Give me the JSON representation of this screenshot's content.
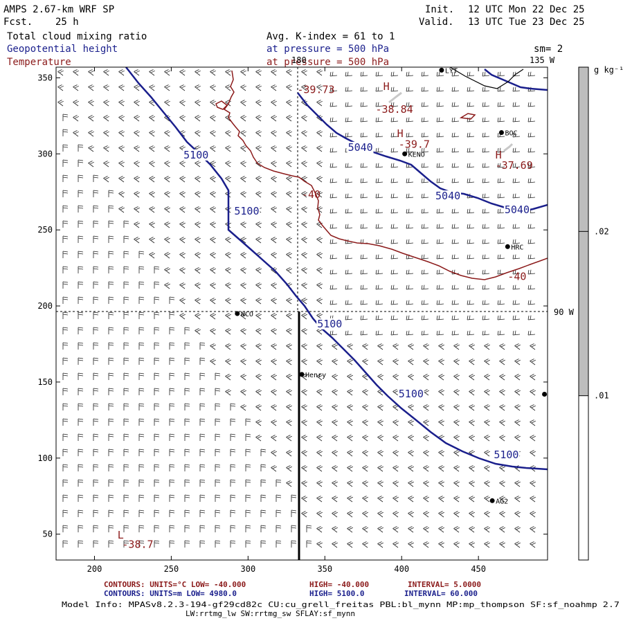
{
  "header": {
    "model": "AMPS 2.67-km WRF SP",
    "fcst_label": "Fcst.",
    "fcst_value": "25 h",
    "init_label": "Init.",
    "init_value": "12 UTC Mon 22 Dec 25",
    "valid_label": "Valid.",
    "valid_value": "13 UTC Tue 23 Dec 25",
    "field1": "Total cloud mixing ratio",
    "field1_extra": "Avg. K-index =  61 to   1",
    "field2": "Geopotential height",
    "field2_extra": "at pressure =  500 hPa",
    "field3": "Temperature",
    "field3_extra": "at pressure =  500 hPa",
    "smoothing": "sm= 2"
  },
  "colors": {
    "height_contour": "#1a1f8c",
    "temperature_contour": "#8b1a1a",
    "field1_text": "#000000",
    "field2_text": "#1a1f8c",
    "field3_text": "#8b1a1a",
    "colorbar_fill": "#bdbdbd"
  },
  "axes": {
    "x_ticks": [
      "200",
      "250",
      "300",
      "350",
      "400",
      "450"
    ],
    "x_values": [
      200,
      250,
      300,
      350,
      400,
      450
    ],
    "y_ticks": [
      "50",
      "100",
      "150",
      "200",
      "250",
      "300",
      "350"
    ],
    "y_values": [
      50,
      100,
      150,
      200,
      250,
      300,
      350
    ],
    "x_range": [
      175,
      495
    ],
    "y_range": [
      33,
      357
    ]
  },
  "map": {
    "meridian_labels": [
      "135 W",
      "180",
      "90 W"
    ],
    "sites": [
      {
        "name": "NCO",
        "x": 293,
        "y": 195
      },
      {
        "name": "Henry",
        "x": 335,
        "y": 155
      },
      {
        "name": "KENO",
        "x": 402,
        "y": 300
      },
      {
        "name": "BOC",
        "x": 465,
        "y": 314
      },
      {
        "name": "HRC",
        "x": 469,
        "y": 239
      },
      {
        "name": "AG2",
        "x": 459,
        "y": 72
      },
      {
        "name": "LYT",
        "x": 426,
        "y": 355
      },
      {
        "name": "",
        "x": 493,
        "y": 142
      }
    ],
    "height_labels": [
      {
        "text": "5040",
        "x": 365,
        "y": 302
      },
      {
        "text": "5100",
        "x": 258,
        "y": 297
      },
      {
        "text": "5100",
        "x": 291,
        "y": 260
      },
      {
        "text": "5100",
        "x": 345,
        "y": 186
      },
      {
        "text": "5100",
        "x": 398,
        "y": 140
      },
      {
        "text": "5040",
        "x": 422,
        "y": 270
      },
      {
        "text": "5040",
        "x": 467,
        "y": 261
      },
      {
        "text": "5100",
        "x": 460,
        "y": 100
      }
    ],
    "temperature_labels": [
      {
        "text": "-39.73",
        "x": 332,
        "y": 340
      },
      {
        "text": "-38.84",
        "x": 383,
        "y": 327
      },
      {
        "text": "-39.7",
        "x": 398,
        "y": 304
      },
      {
        "text": "-37.69",
        "x": 461,
        "y": 290
      },
      {
        "text": "-40",
        "x": 335,
        "y": 271
      },
      {
        "text": "-40",
        "x": 469,
        "y": 217
      },
      {
        "text": "-38.7",
        "x": 218,
        "y": 41
      }
    ],
    "extrema_symbols": [
      {
        "text": "H",
        "x": 388,
        "y": 342,
        "kind": "temperature"
      },
      {
        "text": "H",
        "x": 397,
        "y": 311,
        "kind": "temperature"
      },
      {
        "text": "H",
        "x": 461,
        "y": 297,
        "kind": "temperature"
      },
      {
        "text": "L",
        "x": 215,
        "y": 47,
        "kind": "temperature"
      }
    ]
  },
  "colorbar": {
    "unit": "g kg⁻¹",
    "ticks": [
      ".02",
      ".01"
    ],
    "tick_values": [
      0.02,
      0.01
    ],
    "range": [
      0,
      0.03
    ],
    "gray_from": 0.01
  },
  "footer": {
    "line1_left": "CONTOURS:  UNITS=°C  LOW=  -40.000",
    "line1_mid": "HIGH=  -40.000",
    "line1_right": "INTERVAL=    5.0000",
    "line2_left": "CONTOURS:  UNITS=m  LOW=   4980.0",
    "line2_mid": "HIGH=  5100.0",
    "line2_right": "INTERVAL=   60.000",
    "info1": "Model Info: MPASv8.2.3-194-gf29cd82c CU:cu_grell_freitas PBL:bl_mynn MP:mp_thompson SF:sf_noahmp 2.7",
    "info2": "LW:rrtmg_lw SW:rrtmg_sw SFLAY:sf_mynn"
  }
}
